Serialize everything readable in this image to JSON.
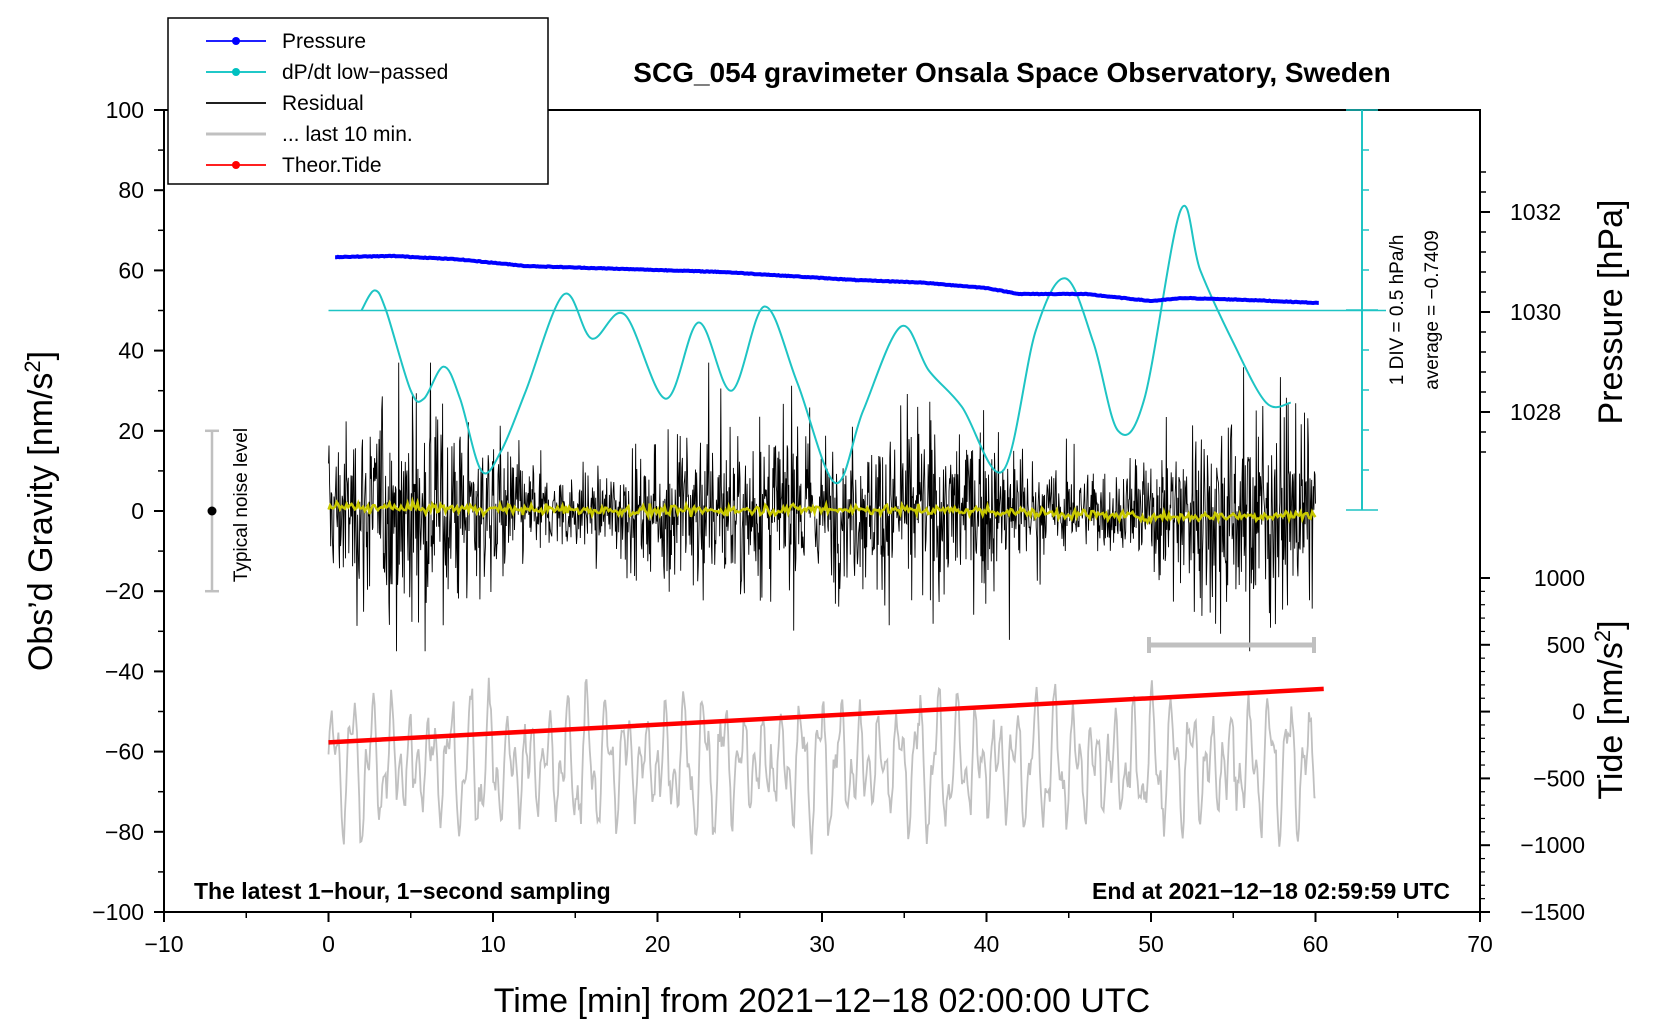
{
  "chart_data": {
    "type": "line",
    "title": "SCG_054 gravimeter Onsala Space Observatory, Sweden",
    "xlabel": "Time [min] from 2021−12−18 02:00:00 UTC",
    "ylabel_left": "Obs’d Gravity [nm/s",
    "ylabel_left_sup": "2",
    "ylabel_left_end": "]",
    "ylabel_right_pressure": "Pressure [hPa]",
    "ylabel_right_tide": "Tide [nm/s",
    "ylabel_right_tide_sup": "2",
    "ylabel_right_tide_end": "]",
    "xlim": [
      -10,
      70
    ],
    "ylim_left": [
      -100,
      100
    ],
    "xticks": [
      -10,
      0,
      10,
      20,
      30,
      40,
      50,
      60,
      70
    ],
    "xtick_labels": [
      "−10",
      "0",
      "10",
      "20",
      "30",
      "40",
      "50",
      "60",
      "70"
    ],
    "yticks_left": [
      100,
      80,
      60,
      40,
      20,
      0,
      -20,
      -40,
      -60,
      -80,
      -100
    ],
    "ytick_left_labels": [
      "100",
      "80",
      "60",
      "40",
      "20",
      "0",
      "−20",
      "−40",
      "−60",
      "−80",
      "−100"
    ],
    "pressure_ticks": [
      1032,
      1030,
      1028
    ],
    "pressure_tick_labels": [
      "1032",
      "1030",
      "1028"
    ],
    "tide_ticks": [
      1000,
      500,
      0,
      -500,
      -1000,
      -1500
    ],
    "tide_tick_labels": [
      "1000",
      "500",
      "0",
      "−500",
      "−1000",
      "−1500"
    ],
    "legend": [
      {
        "name": "Pressure",
        "color": "#0000ff",
        "marker": true
      },
      {
        "name": "dP/dt low−passed",
        "color": "#00c0c0",
        "marker": true
      },
      {
        "name": "Residual",
        "color": "#000000",
        "marker": false
      },
      {
        "name": "... last 10 min.",
        "color": "#c0c0c0",
        "marker": false
      },
      {
        "name": "Theor.Tide",
        "color": "#ff0000",
        "marker": true
      }
    ],
    "series": {
      "pressure": {
        "name": "Pressure",
        "units": "hPa",
        "x": [
          0.4,
          4,
          8,
          12,
          16,
          20,
          24,
          28,
          32,
          36,
          40,
          42,
          46,
          50,
          52,
          56,
          60.2
        ],
        "y": [
          1031.1,
          1031.12,
          1031.05,
          1030.92,
          1030.88,
          1030.84,
          1030.8,
          1030.72,
          1030.64,
          1030.59,
          1030.48,
          1030.36,
          1030.36,
          1030.22,
          1030.28,
          1030.24,
          1030.18
        ]
      },
      "dpdt": {
        "name": "dP/dt low−passed",
        "reference_level_gravity": 50,
        "x": [
          2.0,
          2.8,
          3.5,
          5.0,
          5.8,
          7.0,
          8.0,
          9.3,
          10.5,
          12.0,
          14.3,
          16.0,
          18.0,
          20.5,
          22.5,
          24.5,
          26.5,
          28.5,
          30.8,
          32.5,
          34.8,
          36.5,
          38.5,
          41.0,
          43.0,
          44.8,
          46.5,
          48.0,
          49.6,
          51.8,
          53.0,
          55.0,
          57.0,
          58.5
        ],
        "y": [
          50,
          55,
          50,
          30,
          28,
          36,
          28,
          10,
          15,
          30,
          54,
          43,
          49,
          28,
          47,
          30,
          51,
          32,
          7,
          25,
          46,
          35,
          26,
          10,
          45,
          58,
          42,
          20,
          28,
          75,
          60,
          42,
          27,
          27
        ]
      },
      "residual_smoothed": {
        "name": "Residual (smoothed)",
        "color": "#c8c800",
        "x": [
          0,
          10,
          20,
          30,
          40,
          50,
          60
        ],
        "y": [
          1,
          0.5,
          0,
          0.5,
          0,
          -1.5,
          -1
        ]
      },
      "tide": {
        "name": "Theor.Tide",
        "units": "nm/s2",
        "x": [
          0,
          60.5
        ],
        "y": [
          -230,
          170
        ]
      }
    },
    "noise_level": {
      "label": "Typical noise level",
      "range": [
        -20,
        20
      ]
    },
    "dpdt_scale": {
      "div_label": "1 DIV = 0.5 hPa/h",
      "average_label": "average = −0.7409"
    },
    "notes": {
      "left": "The latest 1−hour, 1−second sampling",
      "right": "End at 2021−12−18 02:59:59 UTC"
    },
    "colors": {
      "pressure": "#0000ff",
      "dpdt": "#1ec4c4",
      "residual": "#000000",
      "last10": "#c0c0c0",
      "tide": "#ff0000",
      "residual_smoothed": "#c8c800"
    }
  }
}
